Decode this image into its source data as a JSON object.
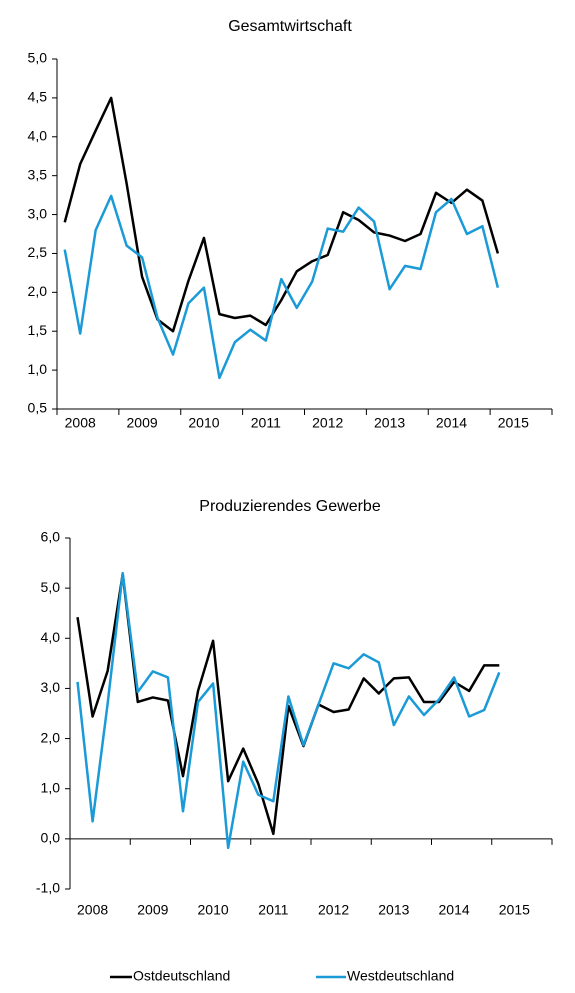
{
  "chart_data": [
    {
      "type": "line",
      "title": "Gesamtwirtschaft",
      "x_labels": [
        "2008",
        "2009",
        "2010",
        "2011",
        "2012",
        "2013",
        "2014",
        "2015"
      ],
      "ylim": [
        0.5,
        5.0
      ],
      "yticks": [
        {
          "value": 0.5,
          "label": "0,5"
        },
        {
          "value": 1.0,
          "label": "1,0"
        },
        {
          "value": 1.5,
          "label": "1,5"
        },
        {
          "value": 2.0,
          "label": "2,0"
        },
        {
          "value": 2.5,
          "label": "2,5"
        },
        {
          "value": 3.0,
          "label": "3,0"
        },
        {
          "value": 3.5,
          "label": "3,5"
        },
        {
          "value": 4.0,
          "label": "4,0"
        },
        {
          "value": 4.5,
          "label": "4,5"
        },
        {
          "value": 5.0,
          "label": "5,0"
        }
      ],
      "series": [
        {
          "name": "Ostdeutschland",
          "color": "#000000",
          "values": [
            2.9,
            3.65,
            4.08,
            4.5,
            3.4,
            2.2,
            1.65,
            1.5,
            2.15,
            2.7,
            1.72,
            1.67,
            1.7,
            1.58,
            1.9,
            2.27,
            2.4,
            2.48,
            3.03,
            2.93,
            2.77,
            2.73,
            2.66,
            2.75,
            3.28,
            3.15,
            3.32,
            3.18,
            2.5
          ]
        },
        {
          "name": "Westdeutschland",
          "color": "#1a9ad6",
          "values": [
            2.55,
            1.47,
            2.8,
            3.24,
            2.6,
            2.45,
            1.67,
            1.2,
            1.86,
            2.06,
            0.9,
            1.36,
            1.52,
            1.38,
            2.17,
            1.8,
            2.14,
            2.82,
            2.78,
            3.09,
            2.91,
            2.04,
            2.34,
            2.3,
            3.03,
            3.2,
            2.75,
            2.85,
            2.06
          ]
        }
      ]
    },
    {
      "type": "line",
      "title": "Produzierendes Gewerbe",
      "x_labels": [
        "2008",
        "2009",
        "2010",
        "2011",
        "2012",
        "2013",
        "2014",
        "2015"
      ],
      "ylim": [
        -1.0,
        6.0
      ],
      "yticks": [
        {
          "value": -1.0,
          "label": "-1,0"
        },
        {
          "value": 0.0,
          "label": "0,0"
        },
        {
          "value": 1.0,
          "label": "1,0"
        },
        {
          "value": 2.0,
          "label": "2,0"
        },
        {
          "value": 3.0,
          "label": "3,0"
        },
        {
          "value": 4.0,
          "label": "4,0"
        },
        {
          "value": 5.0,
          "label": "5,0"
        },
        {
          "value": 6.0,
          "label": "6,0"
        }
      ],
      "series": [
        {
          "color": "#000000",
          "values": [
            4.42,
            2.44,
            3.35,
            5.28,
            2.73,
            2.82,
            2.76,
            1.25,
            2.95,
            3.95,
            1.15,
            1.8,
            1.1,
            0.1,
            2.65,
            1.85,
            2.68,
            2.53,
            2.58,
            3.2,
            2.9,
            3.2,
            3.22,
            2.73,
            2.73,
            3.13,
            2.95,
            3.46,
            3.46
          ]
        },
        {
          "color": "#1a9ad6",
          "values": [
            3.13,
            0.35,
            2.7,
            5.3,
            2.93,
            3.34,
            3.22,
            0.55,
            2.73,
            3.1,
            -0.18,
            1.54,
            0.88,
            0.75,
            2.84,
            1.87,
            2.68,
            3.5,
            3.4,
            3.68,
            3.52,
            2.27,
            2.84,
            2.47,
            2.78,
            3.22,
            2.44,
            2.57,
            3.32
          ]
        }
      ]
    }
  ]
}
